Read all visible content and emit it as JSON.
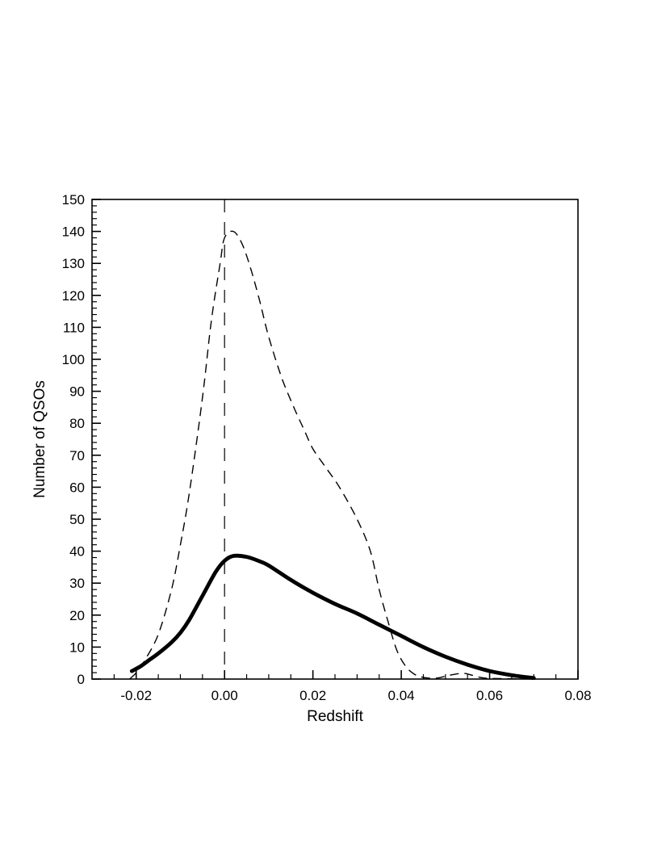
{
  "page": {
    "background": "#ffffff",
    "foreground": "#000000"
  },
  "chart_data": {
    "type": "line",
    "title": "",
    "xlabel": "Redshift",
    "ylabel": "Number of QSOs",
    "xlim": [
      -0.03,
      0.08
    ],
    "ylim": [
      0,
      150
    ],
    "x_ticks": [
      -0.02,
      0,
      0.02,
      0.04,
      0.06,
      0.08
    ],
    "x_tick_labels": [
      "-0.02",
      "0.00",
      "0.02",
      "0.04",
      "0.06",
      "0.08"
    ],
    "y_ticks": [
      0,
      10,
      20,
      30,
      40,
      50,
      60,
      70,
      80,
      90,
      100,
      110,
      120,
      130,
      140,
      150
    ],
    "y_tick_labels": [
      "0",
      "10",
      "20",
      "30",
      "40",
      "50",
      "60",
      "70",
      "80",
      "90",
      "100",
      "110",
      "120",
      "130",
      "140",
      "150"
    ],
    "x_minor_step": 0.005,
    "y_minor_step": 2,
    "grid": false,
    "legend": "none",
    "line_color": "#000000",
    "annotations": [
      {
        "type": "vline",
        "x": 0,
        "style": "dashed"
      }
    ],
    "series": [
      {
        "name": "dashed-curve",
        "style": "dashed",
        "peak": 140,
        "x": [
          -0.0215,
          -0.02,
          -0.018,
          -0.015,
          -0.012,
          -0.01,
          -0.008,
          -0.005,
          -0.003,
          -0.001,
          0.0,
          0.002,
          0.004,
          0.006,
          0.008,
          0.01,
          0.013,
          0.016,
          0.018,
          0.02,
          0.023,
          0.026,
          0.03,
          0.033,
          0.035,
          0.037,
          0.039,
          0.041,
          0.043,
          0.045,
          0.048,
          0.051,
          0.054,
          0.056,
          0.058,
          0.06,
          0.065,
          0.07
        ],
        "y": [
          0,
          2,
          6,
          14,
          28,
          42,
          58,
          88,
          112,
          130,
          138,
          140,
          136,
          128,
          118,
          107,
          94,
          84,
          78,
          72,
          66,
          60,
          50,
          40,
          28,
          18,
          9,
          4,
          1.5,
          0.5,
          0.3,
          1.2,
          1.8,
          1.2,
          0.5,
          0.2,
          0.1,
          0
        ]
      },
      {
        "name": "solid-thick-curve",
        "style": "solid",
        "peak": 38.5,
        "x": [
          -0.021,
          -0.019,
          -0.017,
          -0.015,
          -0.012,
          -0.01,
          -0.008,
          -0.005,
          -0.002,
          0.0,
          0.002,
          0.005,
          0.008,
          0.01,
          0.015,
          0.02,
          0.025,
          0.03,
          0.035,
          0.04,
          0.045,
          0.05,
          0.055,
          0.06,
          0.065,
          0.07
        ],
        "y": [
          2.5,
          4,
          6,
          8,
          11.5,
          14.5,
          18.5,
          26,
          33.5,
          37,
          38.5,
          38.2,
          36.8,
          35.5,
          31,
          27,
          23.5,
          20.5,
          17,
          13.5,
          10,
          7,
          4.5,
          2.5,
          1.2,
          0.3
        ]
      }
    ]
  }
}
